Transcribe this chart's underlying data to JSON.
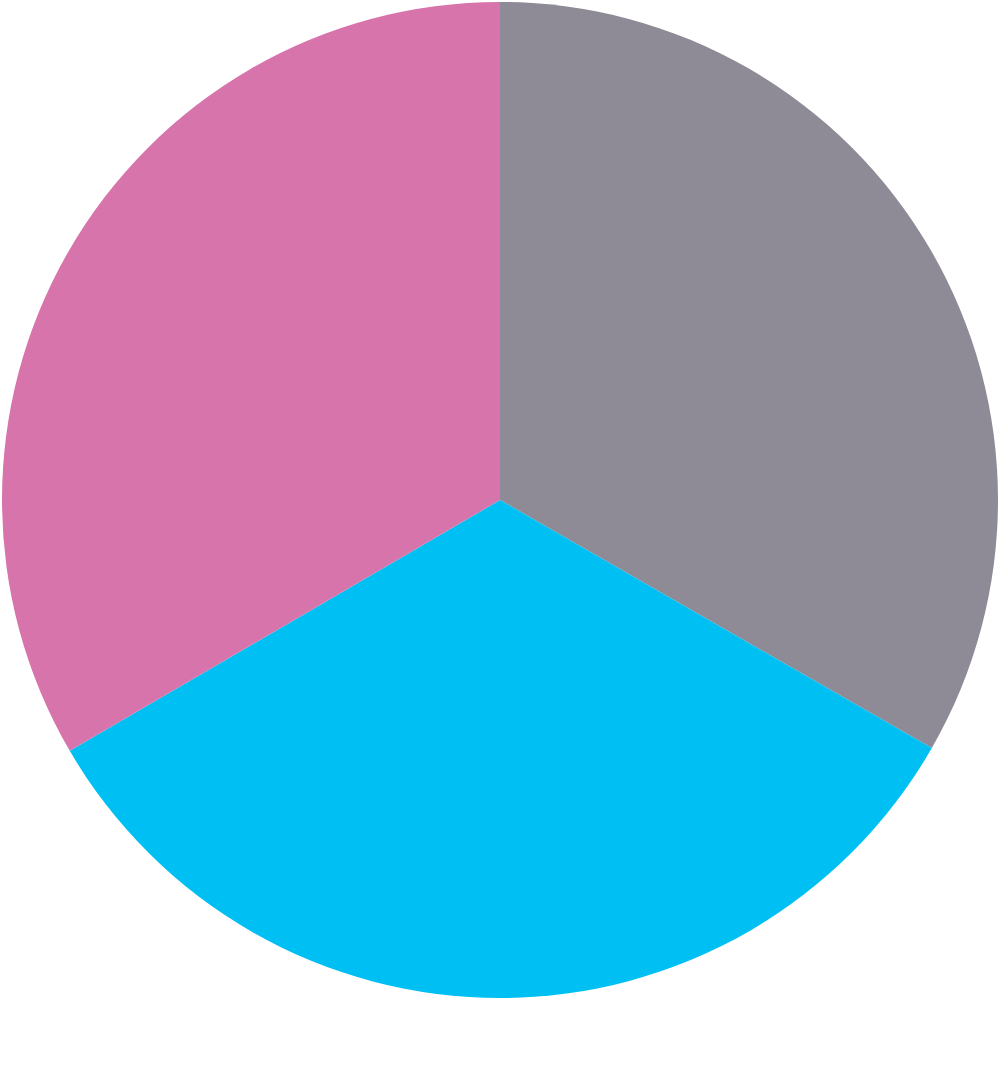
{
  "chart_data": {
    "type": "pie",
    "categories": [
      null,
      null,
      null
    ],
    "values": [
      33.3,
      33.3,
      33.4
    ],
    "colors": [
      "#8e8b96",
      "#00bff3",
      "#d674ab"
    ]
  }
}
